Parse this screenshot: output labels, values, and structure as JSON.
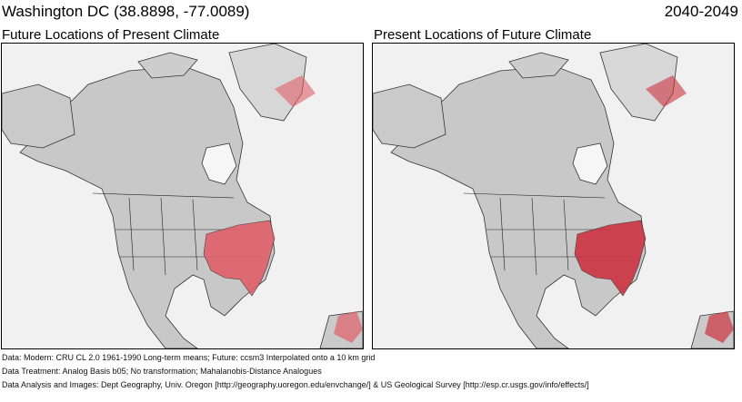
{
  "header": {
    "location": "Washington DC  (38.8898, -77.0089)",
    "period": "2040-2049"
  },
  "panels": [
    {
      "title": "Future Locations of Present Climate",
      "highlight_color": "#e0606a",
      "highlight_region": "southeastern-united-states"
    },
    {
      "title": "Present Locations of Future Climate",
      "highlight_color": "#cc3340",
      "highlight_region": "southeastern-united-states"
    }
  ],
  "footer": {
    "line1": "Data:  Modern: CRU CL 2.0 1961-1990 Long-term means; Future: ccsm3 Interpolated onto a 10 km grid",
    "line2": "Data Treatment:  Analog Basis b05; No transformation; Mahalanobis-Distance Analogues",
    "line3": "Data Analysis and Images:  Dept Geography, Univ. Oregon [http://geography.uoregon.edu/envchange/] & US Geological Survey [http://esp.cr.usgs.gov/info/effects/]"
  }
}
